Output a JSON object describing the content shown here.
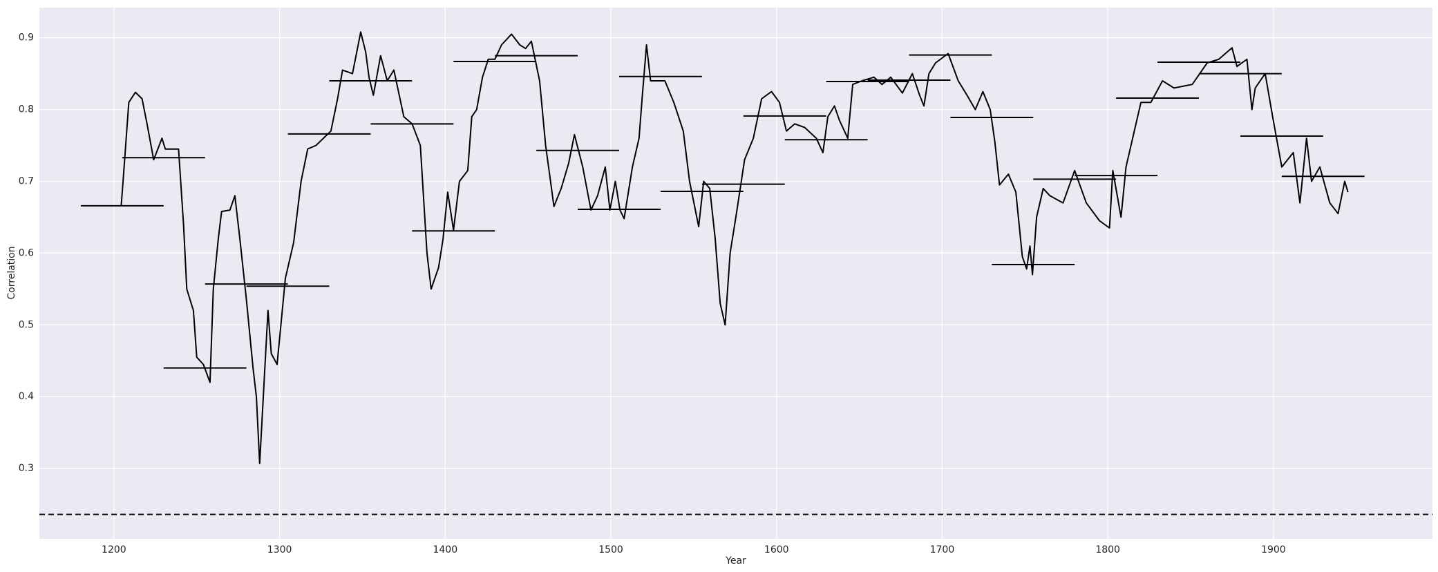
{
  "chart_data": {
    "type": "line",
    "xlabel": "Year",
    "ylabel": "Correlation",
    "xlim": [
      1155,
      1996
    ],
    "ylim": [
      0.202,
      0.942
    ],
    "xticks": [
      1200,
      1300,
      1400,
      1500,
      1600,
      1700,
      1800,
      1900
    ],
    "yticks": [
      0.3,
      0.4,
      0.5,
      0.6,
      0.7,
      0.8,
      0.9
    ],
    "grid": true,
    "background": "#eaeaf2",
    "color": "#000000",
    "reference_line": 0.236,
    "x": [
      1204.4,
      1205.5,
      1209,
      1213,
      1217,
      1220,
      1224,
      1229,
      1231,
      1239,
      1242,
      1244,
      1248,
      1250,
      1254,
      1258,
      1260,
      1263,
      1265,
      1270,
      1273,
      1276,
      1280,
      1284,
      1286,
      1288,
      1293,
      1295,
      1298.5,
      1303.5,
      1308.5,
      1313,
      1317,
      1322,
      1331,
      1335,
      1338,
      1344,
      1347,
      1349,
      1352,
      1354,
      1356.6,
      1361,
      1365,
      1369,
      1375,
      1380,
      1385,
      1389,
      1391.5,
      1396,
      1398.7,
      1401.5,
      1405,
      1408.6,
      1413.6,
      1416,
      1419,
      1422.5,
      1426,
      1430,
      1434,
      1440,
      1445,
      1448.5,
      1452,
      1457,
      1460.6,
      1463,
      1465.6,
      1470,
      1474.5,
      1478,
      1483,
      1488,
      1492,
      1496.6,
      1499.4,
      1502.7,
      1505.5,
      1508,
      1513,
      1517,
      1519,
      1521.5,
      1524,
      1532.6,
      1538,
      1543.7,
      1547.5,
      1553,
      1556,
      1559.7,
      1563,
      1566,
      1569,
      1572,
      1575.8,
      1580.7,
      1586,
      1591,
      1597,
      1601.8,
      1606,
      1611,
      1617,
      1624,
      1628,
      1631,
      1635,
      1638,
      1643,
      1646,
      1651.6,
      1658.8,
      1663.7,
      1669,
      1676,
      1682,
      1686.4,
      1689,
      1692,
      1696,
      1703.6,
      1709.7,
      1715,
      1720,
      1724.6,
      1729,
      1731.8,
      1734.6,
      1740,
      1744.5,
      1748.4,
      1751,
      1753,
      1754.5,
      1757,
      1761,
      1765,
      1773,
      1780,
      1787,
      1795,
      1801,
      1803,
      1808,
      1811,
      1815,
      1820,
      1826,
      1833,
      1840,
      1851,
      1860,
      1867,
      1875,
      1878,
      1884,
      1887,
      1889,
      1895,
      1899.5,
      1905,
      1912,
      1916,
      1920,
      1923,
      1928,
      1934,
      1939,
      1943,
      1945
    ],
    "values": [
      0.666,
      0.7,
      0.81,
      0.824,
      0.815,
      0.78,
      0.73,
      0.76,
      0.745,
      0.745,
      0.64,
      0.55,
      0.52,
      0.455,
      0.445,
      0.42,
      0.55,
      0.62,
      0.658,
      0.66,
      0.68,
      0.62,
      0.535,
      0.44,
      0.4,
      0.307,
      0.52,
      0.46,
      0.445,
      0.565,
      0.615,
      0.7,
      0.745,
      0.75,
      0.77,
      0.815,
      0.855,
      0.85,
      0.885,
      0.908,
      0.88,
      0.845,
      0.82,
      0.875,
      0.84,
      0.855,
      0.79,
      0.78,
      0.75,
      0.6,
      0.55,
      0.58,
      0.62,
      0.685,
      0.632,
      0.7,
      0.715,
      0.79,
      0.8,
      0.845,
      0.87,
      0.87,
      0.89,
      0.905,
      0.89,
      0.885,
      0.895,
      0.84,
      0.75,
      0.71,
      0.665,
      0.69,
      0.725,
      0.765,
      0.72,
      0.66,
      0.68,
      0.72,
      0.66,
      0.7,
      0.66,
      0.648,
      0.72,
      0.76,
      0.82,
      0.89,
      0.84,
      0.84,
      0.81,
      0.77,
      0.7,
      0.637,
      0.7,
      0.69,
      0.62,
      0.53,
      0.5,
      0.6,
      0.655,
      0.73,
      0.76,
      0.815,
      0.825,
      0.81,
      0.77,
      0.78,
      0.775,
      0.76,
      0.74,
      0.79,
      0.805,
      0.785,
      0.76,
      0.835,
      0.84,
      0.845,
      0.835,
      0.845,
      0.823,
      0.85,
      0.82,
      0.805,
      0.85,
      0.865,
      0.878,
      0.84,
      0.82,
      0.8,
      0.825,
      0.8,
      0.755,
      0.695,
      0.71,
      0.685,
      0.595,
      0.578,
      0.61,
      0.57,
      0.65,
      0.69,
      0.68,
      0.67,
      0.715,
      0.67,
      0.645,
      0.635,
      0.715,
      0.65,
      0.72,
      0.76,
      0.81,
      0.81,
      0.84,
      0.83,
      0.835,
      0.865,
      0.87,
      0.886,
      0.86,
      0.87,
      0.8,
      0.83,
      0.85,
      0.79,
      0.72,
      0.74,
      0.67,
      0.76,
      0.7,
      0.72,
      0.67,
      0.655,
      0.7,
      0.685
    ],
    "segments": {
      "x_start": [
        1180,
        1205,
        1230,
        1255,
        1280,
        1305,
        1330,
        1355,
        1380,
        1405,
        1430,
        1455,
        1480,
        1505,
        1530,
        1555,
        1580,
        1605,
        1630,
        1655,
        1680,
        1705,
        1730,
        1755,
        1780,
        1805,
        1830,
        1855,
        1880,
        1905
      ],
      "x_end": [
        1230,
        1255,
        1280,
        1305,
        1330,
        1355,
        1380,
        1405,
        1430,
        1455,
        1480,
        1505,
        1530,
        1555,
        1580,
        1605,
        1630,
        1655,
        1680,
        1705,
        1730,
        1755,
        1780,
        1805,
        1830,
        1855,
        1880,
        1905,
        1930,
        1955
      ],
      "values": [
        0.666,
        0.733,
        0.44,
        0.557,
        0.554,
        0.766,
        0.84,
        0.78,
        0.631,
        0.867,
        0.875,
        0.743,
        0.661,
        0.846,
        0.686,
        0.696,
        0.791,
        0.758,
        0.839,
        0.841,
        0.876,
        0.789,
        0.584,
        0.703,
        0.708,
        0.816,
        0.866,
        0.85,
        0.763,
        0.707
      ]
    }
  }
}
